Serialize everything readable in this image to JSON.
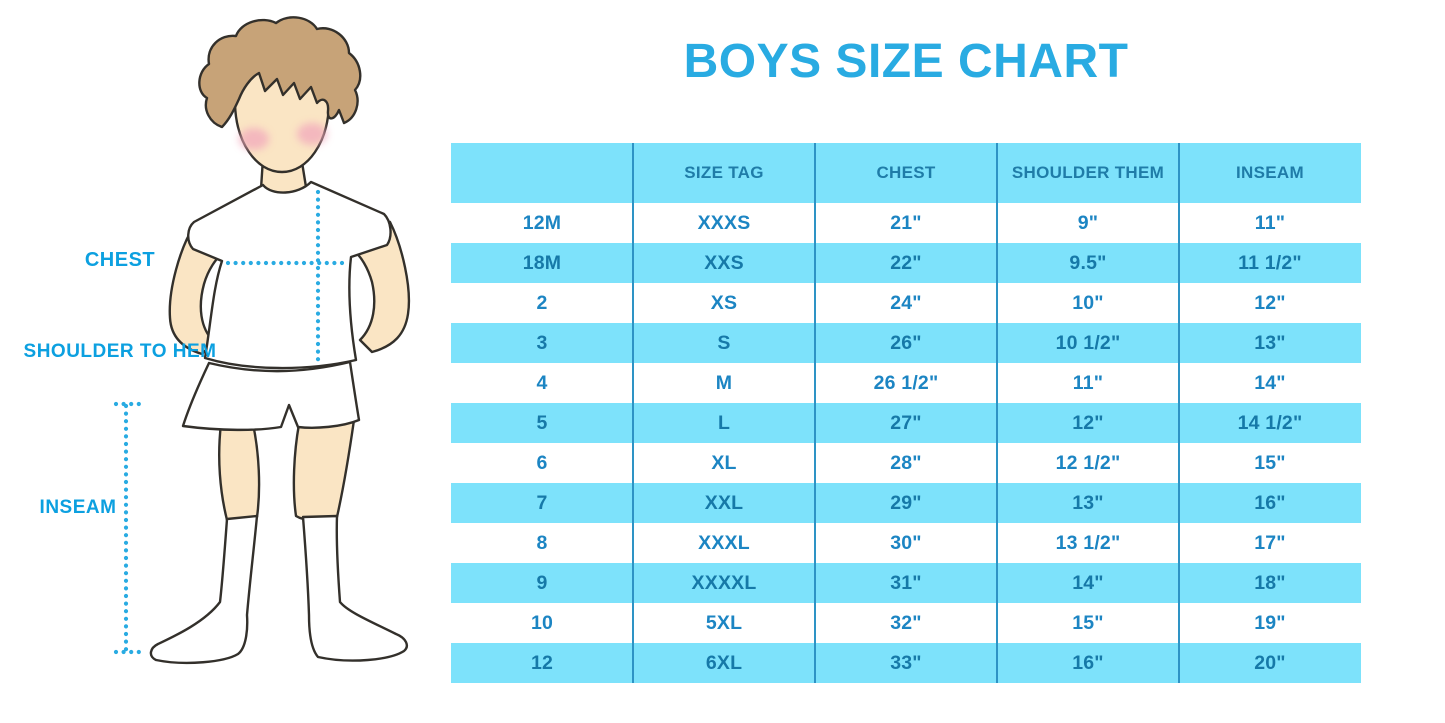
{
  "title": "BOYS SIZE CHART",
  "figure": {
    "labels": {
      "chest": "CHEST",
      "shoulder_to_hem": "SHOULDER TO HEM",
      "inseam": "INSEAM"
    }
  },
  "table": {
    "columns": [
      "",
      "SIZE TAG",
      "CHEST",
      "SHOULDER THEM",
      "INSEAM"
    ],
    "rows": [
      [
        "12M",
        "XXXS",
        "21\"",
        "9\"",
        "11\""
      ],
      [
        "18M",
        "XXS",
        "22\"",
        "9.5\"",
        "11 1/2\""
      ],
      [
        "2",
        "XS",
        "24\"",
        "10\"",
        "12\""
      ],
      [
        "3",
        "S",
        "26\"",
        "10 1/2\"",
        "13\""
      ],
      [
        "4",
        "M",
        "26 1/2\"",
        "11\"",
        "14\""
      ],
      [
        "5",
        "L",
        "27\"",
        "12\"",
        "14 1/2\""
      ],
      [
        "6",
        "XL",
        "28\"",
        "12 1/2\"",
        "15\""
      ],
      [
        "7",
        "XXL",
        "29\"",
        "13\"",
        "16\""
      ],
      [
        "8",
        "XXXL",
        "30\"",
        "13 1/2\"",
        "17\""
      ],
      [
        "9",
        "XXXXL",
        "31\"",
        "14\"",
        "18\""
      ],
      [
        "10",
        "5XL",
        "32\"",
        "15\"",
        "19\""
      ],
      [
        "12",
        "6XL",
        "33\"",
        "16\"",
        "20\""
      ]
    ]
  },
  "colors": {
    "title_blue": "#29ABE2",
    "label_blue": "#0CA0E0",
    "band_blue": "#7DE2FB",
    "grid_blue": "#2E93C5",
    "header_text": "#1F7CA8",
    "cell_text": "#1C85C3",
    "cell_text_on_band": "#1679A8",
    "dotted_line": "#29ABE2",
    "skin": "#FAE5C4",
    "hair": "#C7A378",
    "blush": "#F2A9BC",
    "outline": "#33302B"
  }
}
